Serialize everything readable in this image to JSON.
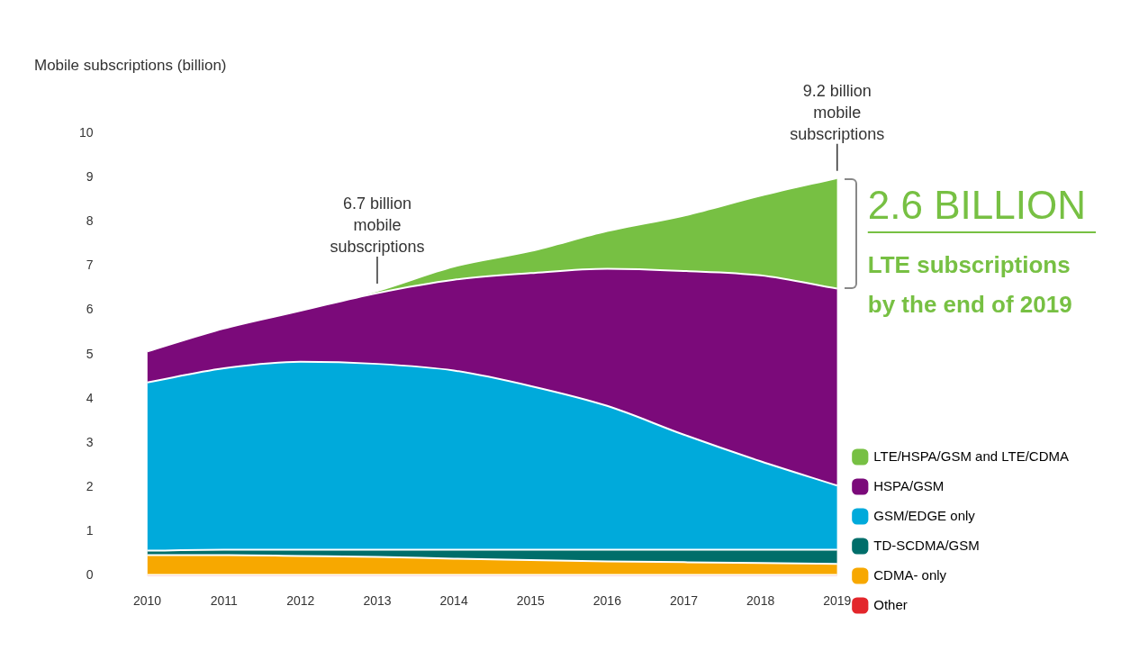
{
  "chart_data": {
    "type": "area",
    "stacked": true,
    "ylabel": "Mobile subscriptions (billion)",
    "categories": [
      "2010",
      "2011",
      "2012",
      "2013",
      "2014",
      "2015",
      "2016",
      "2017",
      "2018",
      "2019"
    ],
    "series": [
      {
        "name": "Other",
        "color": "#e3262b",
        "values": [
          0.02,
          0.02,
          0.02,
          0.02,
          0.02,
          0.02,
          0.02,
          0.02,
          0.02,
          0.02
        ]
      },
      {
        "name": "CDMA- only",
        "color": "#f7a800",
        "values": [
          0.45,
          0.45,
          0.43,
          0.41,
          0.37,
          0.34,
          0.31,
          0.29,
          0.27,
          0.25
        ]
      },
      {
        "name": "TD-SCDMA/GSM",
        "color": "#006e6a",
        "values": [
          0.1,
          0.12,
          0.14,
          0.16,
          0.2,
          0.23,
          0.26,
          0.28,
          0.3,
          0.32
        ]
      },
      {
        "name": "GSM/EDGE only",
        "color": "#00aadb",
        "values": [
          3.8,
          4.1,
          4.25,
          4.2,
          4.05,
          3.7,
          3.25,
          2.6,
          2.0,
          1.45
        ]
      },
      {
        "name": "HSPA/GSM",
        "color": "#7b0a7a",
        "values": [
          0.7,
          0.9,
          1.15,
          1.6,
          2.05,
          2.55,
          3.1,
          3.7,
          4.2,
          4.45
        ]
      },
      {
        "name": "LTE/HSPA/GSM and LTE/CDMA",
        "color": "#77c043",
        "values": [
          0,
          0,
          0.02,
          0.05,
          0.3,
          0.5,
          0.85,
          1.25,
          1.8,
          2.5
        ]
      }
    ],
    "ylim": [
      0,
      10
    ],
    "yticks": [
      0,
      1,
      2,
      3,
      4,
      5,
      6,
      7,
      8,
      9,
      10
    ],
    "grid": false,
    "legend": "bottom right",
    "marker": "none",
    "annotations": [
      {
        "text": "6.7 billion\nmobile\nsubscriptions",
        "x": "2013",
        "y": 6.44
      },
      {
        "text": "9.2 billion\nmobile\nsubscriptions",
        "x": "2019",
        "y": 8.99
      },
      "2.6 BILLION\nLTE subscriptions\nby the end of 2019"
    ]
  }
}
